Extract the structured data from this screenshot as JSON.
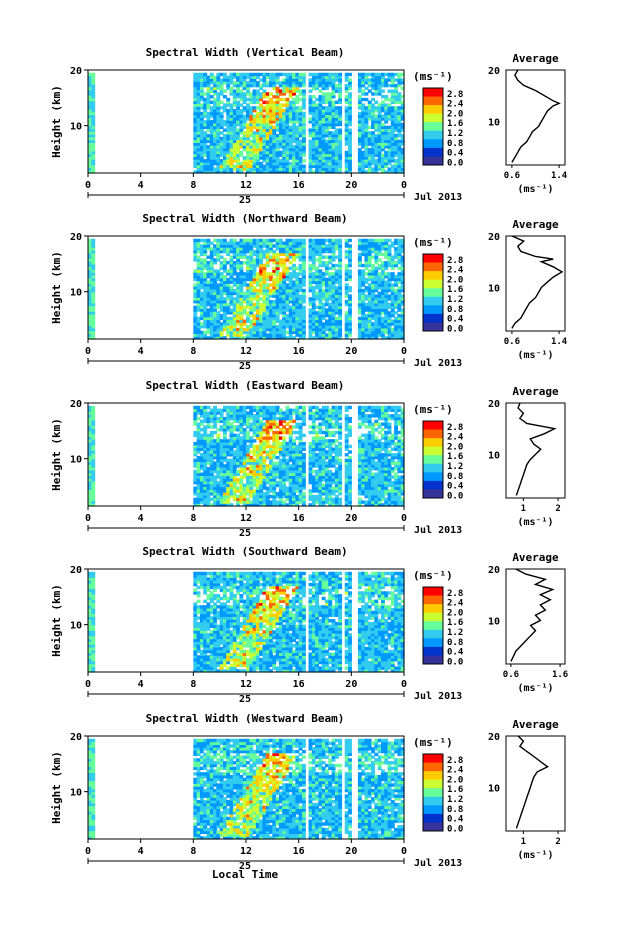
{
  "chart_data": {
    "type": "heatmap",
    "figure": {
      "time_axis_label": "Local Time",
      "date_label": "Jul 2013",
      "day_label": "25",
      "time_ticks": [
        "0",
        "4",
        "8",
        "12",
        "16",
        "20",
        "0"
      ],
      "height_ylabel": "Height (km)",
      "height_ticks": [
        "20",
        "10"
      ],
      "unit_label": "(ms⁻¹)",
      "colorbar_ticks": [
        "2.8",
        "2.4",
        "2.0",
        "1.6",
        "1.2",
        "0.8",
        "0.4",
        "0.0"
      ],
      "colorbar_colors": [
        "#ff0000",
        "#ff6600",
        "#ffcc00",
        "#ccff33",
        "#66ff99",
        "#33ccee",
        "#0099ff",
        "#0033cc",
        "#333399"
      ],
      "average_title": "Average",
      "average_xlabel": "(ms⁻¹)"
    },
    "xlim_hours": [
      0,
      24
    ],
    "ylim_km": [
      1.5,
      20
    ],
    "data_gaps": [
      [
        0.5,
        8
      ],
      [
        16.3,
        16.6
      ],
      [
        19.2,
        19.5
      ],
      [
        19.9,
        20.4
      ]
    ],
    "panels": [
      {
        "title": "Spectral Width (Vertical Beam)",
        "avg_ticks": [
          "0.6",
          "1.4"
        ],
        "avg_xlim": [
          0.5,
          1.5
        ],
        "avg_profile": [
          [
            0.6,
            2
          ],
          [
            0.65,
            3
          ],
          [
            0.7,
            4
          ],
          [
            0.75,
            5
          ],
          [
            0.85,
            6
          ],
          [
            0.9,
            7
          ],
          [
            0.95,
            8
          ],
          [
            1.05,
            9
          ],
          [
            1.1,
            10
          ],
          [
            1.15,
            11
          ],
          [
            1.2,
            12
          ],
          [
            1.3,
            13
          ],
          [
            1.4,
            13.5
          ],
          [
            1.3,
            14
          ],
          [
            1.15,
            15
          ],
          [
            1.0,
            16
          ],
          [
            0.8,
            17
          ],
          [
            0.7,
            18
          ],
          [
            0.65,
            19
          ],
          [
            0.7,
            20
          ]
        ]
      },
      {
        "title": "Spectral Width (Northward Beam)",
        "avg_ticks": [
          "0.6",
          "1.4"
        ],
        "avg_xlim": [
          0.5,
          1.5
        ],
        "avg_profile": [
          [
            0.6,
            2
          ],
          [
            0.65,
            3
          ],
          [
            0.75,
            4
          ],
          [
            0.8,
            5
          ],
          [
            0.85,
            6
          ],
          [
            0.9,
            7
          ],
          [
            1.0,
            8
          ],
          [
            1.05,
            9
          ],
          [
            1.1,
            10
          ],
          [
            1.2,
            11
          ],
          [
            1.3,
            12
          ],
          [
            1.45,
            13
          ],
          [
            1.3,
            14
          ],
          [
            1.1,
            15
          ],
          [
            1.3,
            15.5
          ],
          [
            1.0,
            16
          ],
          [
            0.75,
            17
          ],
          [
            0.7,
            18
          ],
          [
            0.8,
            19
          ],
          [
            0.6,
            20
          ]
        ]
      },
      {
        "title": "Spectral Width (Eastward Beam)",
        "avg_ticks": [
          "1",
          "2"
        ],
        "avg_xlim": [
          0.5,
          2.2
        ],
        "avg_profile": [
          [
            0.8,
            2
          ],
          [
            0.85,
            3
          ],
          [
            0.9,
            4
          ],
          [
            0.95,
            5
          ],
          [
            1.0,
            6
          ],
          [
            1.05,
            7
          ],
          [
            1.1,
            8
          ],
          [
            1.2,
            9
          ],
          [
            1.35,
            10
          ],
          [
            1.5,
            11
          ],
          [
            1.3,
            12
          ],
          [
            1.2,
            13
          ],
          [
            1.6,
            14
          ],
          [
            1.9,
            15
          ],
          [
            1.5,
            15.5
          ],
          [
            1.1,
            16
          ],
          [
            0.9,
            17
          ],
          [
            1.0,
            18
          ],
          [
            0.85,
            19
          ],
          [
            0.9,
            20
          ]
        ]
      },
      {
        "title": "Spectral Width (Southward Beam)",
        "avg_ticks": [
          "0.6",
          "1.6"
        ],
        "avg_xlim": [
          0.5,
          1.7
        ],
        "avg_profile": [
          [
            0.6,
            2
          ],
          [
            0.65,
            3
          ],
          [
            0.7,
            4
          ],
          [
            0.8,
            5
          ],
          [
            0.9,
            6
          ],
          [
            1.0,
            7
          ],
          [
            1.1,
            8
          ],
          [
            1.0,
            9
          ],
          [
            1.2,
            10
          ],
          [
            1.1,
            11
          ],
          [
            1.3,
            12
          ],
          [
            1.2,
            13
          ],
          [
            1.4,
            14
          ],
          [
            1.2,
            15
          ],
          [
            1.45,
            16
          ],
          [
            1.1,
            17
          ],
          [
            1.3,
            18
          ],
          [
            0.9,
            19
          ],
          [
            0.7,
            20
          ]
        ]
      },
      {
        "title": "Spectral Width (Westward Beam)",
        "avg_ticks": [
          "1",
          "2"
        ],
        "avg_xlim": [
          0.5,
          2.2
        ],
        "avg_profile": [
          [
            0.8,
            2
          ],
          [
            0.85,
            3
          ],
          [
            0.9,
            4
          ],
          [
            0.95,
            5
          ],
          [
            1.0,
            6
          ],
          [
            1.05,
            7
          ],
          [
            1.1,
            8
          ],
          [
            1.15,
            9
          ],
          [
            1.2,
            10
          ],
          [
            1.25,
            11
          ],
          [
            1.3,
            12
          ],
          [
            1.4,
            13
          ],
          [
            1.7,
            14
          ],
          [
            1.5,
            15
          ],
          [
            1.3,
            16
          ],
          [
            1.1,
            17
          ],
          [
            0.9,
            18
          ],
          [
            1.0,
            19
          ],
          [
            0.85,
            20
          ]
        ]
      }
    ]
  }
}
